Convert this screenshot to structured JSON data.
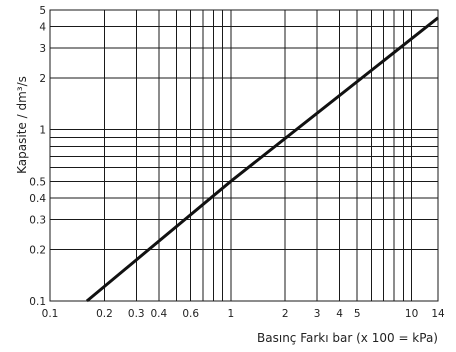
{
  "chart_data": {
    "type": "line",
    "title": "",
    "xlabel": "Basınç Farkı bar (x 100 = kPa)",
    "ylabel": "Kapasite / dm³/s",
    "xscale": "log",
    "yscale": "log",
    "xlim": [
      0.1,
      14
    ],
    "ylim": [
      0.1,
      5
    ],
    "grid": true,
    "legend": "none",
    "x_ticks": [
      0.1,
      0.2,
      0.3,
      0.4,
      0.6,
      1,
      2,
      3,
      4,
      5,
      10,
      14
    ],
    "x_tick_labels": [
      "0.1",
      "0.2",
      "0.3",
      "0.4",
      "0.6",
      "1",
      "2",
      "3",
      "4",
      "5",
      "10",
      "14"
    ],
    "y_ticks": [
      0.1,
      0.2,
      0.3,
      0.4,
      0.5,
      1,
      2,
      3,
      4,
      5
    ],
    "y_tick_labels": [
      "0.1",
      "0.2",
      "0.3",
      "0.4",
      "0.5",
      "1",
      "2",
      "3",
      "4",
      "5"
    ],
    "x_gridlines": [
      0.2,
      0.3,
      0.4,
      0.5,
      0.6,
      0.7,
      0.8,
      0.9,
      1,
      2,
      3,
      4,
      5,
      6,
      7,
      8,
      9,
      10
    ],
    "y_gridlines": [
      0.2,
      0.3,
      0.4,
      0.5,
      0.6,
      0.7,
      0.8,
      0.9,
      1,
      2,
      3,
      4
    ],
    "series": [
      {
        "x": [
          0.16,
          1,
          14
        ],
        "y": [
          0.1,
          0.5,
          4.5
        ]
      }
    ],
    "colors": {
      "line": "#111111",
      "grid": "#1a1a1a"
    }
  }
}
